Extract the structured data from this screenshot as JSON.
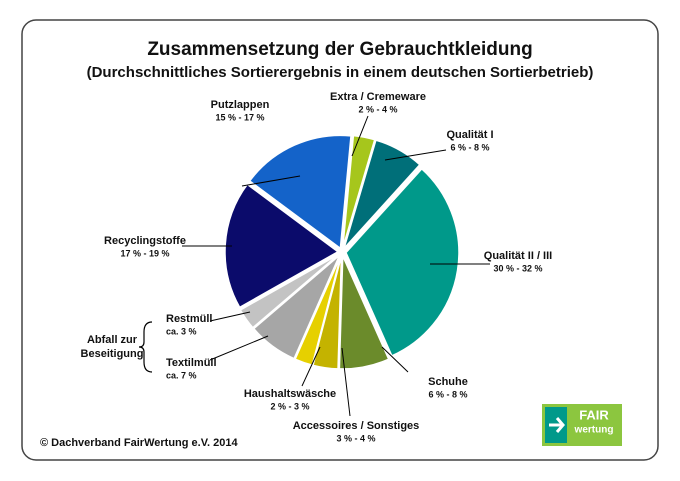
{
  "chart_data": {
    "type": "pie",
    "title": "Zusammensetzung der Gebrauchtkleidung",
    "subtitle": "(Durchschnittliches Sortierergebnis in einem deutschen Sortierbetrieb)",
    "categories": [
      "Extra / Cremeware",
      "Qualität I",
      "Qualität II / III",
      "Schuhe",
      "Accessoires / Sonstiges",
      "Haushaltswäsche",
      "Textilmüll",
      "Restmüll",
      "Recyclingstoffe",
      "Putzlappen"
    ],
    "values": [
      3,
      7,
      31,
      7,
      3.5,
      2.5,
      7,
      3,
      18,
      16
    ],
    "value_labels": [
      "2 % - 4 %",
      "6 % - 8 %",
      "30 % - 32 %",
      "6 % - 8 %",
      "3 % - 4 %",
      "2 % - 3 %",
      "ca. 7 %",
      "ca. 3 %",
      "17 % - 19 %",
      "15 % - 17 %"
    ],
    "colors": [
      "#a6c61c",
      "#006f79",
      "#00998a",
      "#6b8b2b",
      "#c4b300",
      "#e6d000",
      "#a6a6a6",
      "#c3c3c3",
      "#0b0b6b",
      "#1463c9"
    ],
    "group_label": [
      "Abfall zur",
      "Beseitigung"
    ],
    "source": "© Dachverband FairWertung e.V. 2014",
    "logo": [
      "FAIR",
      "wertung"
    ]
  }
}
